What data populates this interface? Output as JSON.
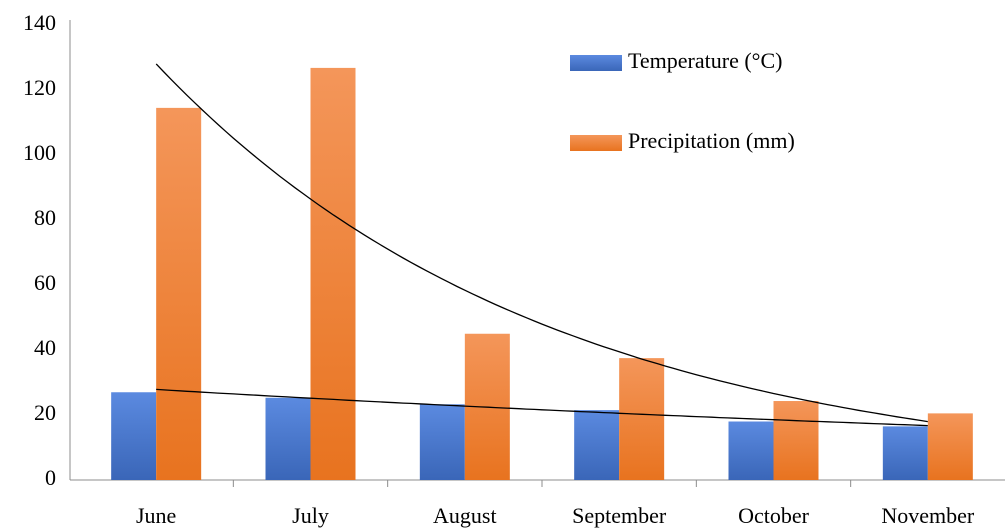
{
  "chart_data": {
    "type": "bar",
    "categories": [
      "June",
      "July",
      "August",
      "September",
      "October",
      "November"
    ],
    "series": [
      {
        "name": "Temperature (°C)",
        "color": "#4472c4",
        "values": [
          27,
          25.3,
          23.3,
          21.5,
          18,
          16.5
        ]
      },
      {
        "name": "Precipitation (mm)",
        "color": "#ed7d31",
        "values": [
          114.5,
          126.8,
          45,
          37.5,
          24.3,
          20.5
        ]
      }
    ],
    "ylim": [
      0,
      140
    ],
    "yticks": [
      0,
      20,
      40,
      60,
      80,
      100,
      120,
      140
    ],
    "grid": false,
    "legend": "upper right",
    "trendline": "exponential"
  }
}
